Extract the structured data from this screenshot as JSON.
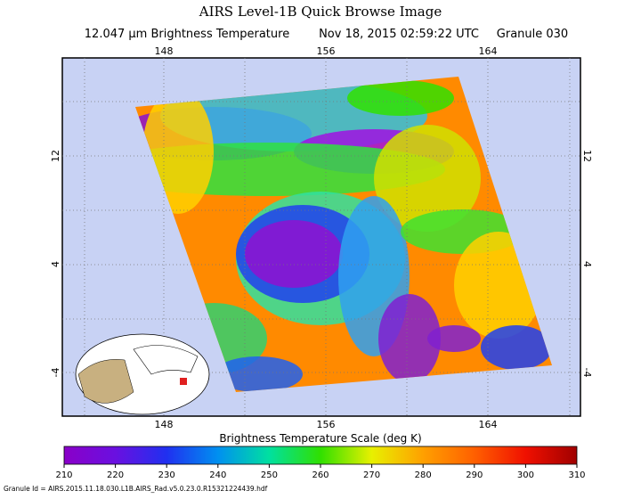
{
  "header": {
    "title": "AIRS Level-1B Quick Browse Image",
    "subtitle": [
      "12.047 μm Brightness Temperature",
      "Nov 18, 2015 02:59:22 UTC",
      "Granule 030"
    ]
  },
  "map": {
    "lon_labels": [
      148,
      156,
      164
    ],
    "lat_labels": [
      12,
      4,
      -4
    ]
  },
  "colorbar": {
    "title": "Brightness Temperature Scale (deg K)",
    "ticks": [
      210,
      220,
      230,
      240,
      250,
      260,
      270,
      280,
      290,
      300,
      310
    ]
  },
  "footer": "Granule Id = AIRS.2015.11.18.030.L1B.AIRS_Rad.v5.0.23.0.R15321224439.hdf"
}
